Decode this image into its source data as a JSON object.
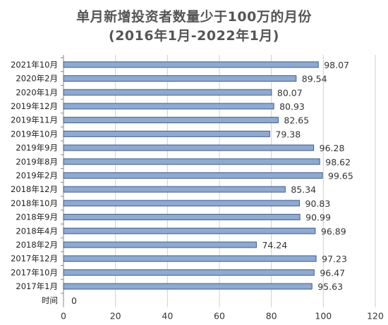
{
  "chart_data": {
    "type": "bar",
    "orientation": "horizontal",
    "title": "单月新增投资者数量少于100万的月份",
    "subtitle": "(2016年1月-2022年1月)",
    "categories": [
      "2021年10月",
      "2020年2月",
      "2020年1月",
      "2019年12月",
      "2019年11月",
      "2019年10月",
      "2019年9月",
      "2019年8月",
      "2019年2月",
      "2018年12月",
      "2018年10月",
      "2018年9月",
      "2018年4月",
      "2018年2月",
      "2017年12月",
      "2017年10月",
      "2017年1月",
      "时间"
    ],
    "values": [
      98.07,
      89.54,
      80.07,
      80.93,
      82.65,
      79.38,
      96.28,
      98.62,
      99.65,
      85.34,
      90.83,
      90.99,
      96.89,
      74.24,
      97.23,
      96.47,
      95.63,
      0
    ],
    "value_labels": [
      "98.07",
      "89.54",
      "80.07",
      "80.93",
      "82.65",
      "79.38",
      "96.28",
      "98.62",
      "99.65",
      "85.34",
      "90.83",
      "90.99",
      "96.89",
      "74.24",
      "97.23",
      "96.47",
      "95.63",
      "0"
    ],
    "xlim": [
      0,
      120
    ],
    "xticks": [
      "0",
      "20",
      "40",
      "60",
      "80",
      "100",
      "120"
    ],
    "grid": "vertical",
    "bar_color": "#8fa9cf",
    "bar_edge": "#3f5f8f"
  }
}
